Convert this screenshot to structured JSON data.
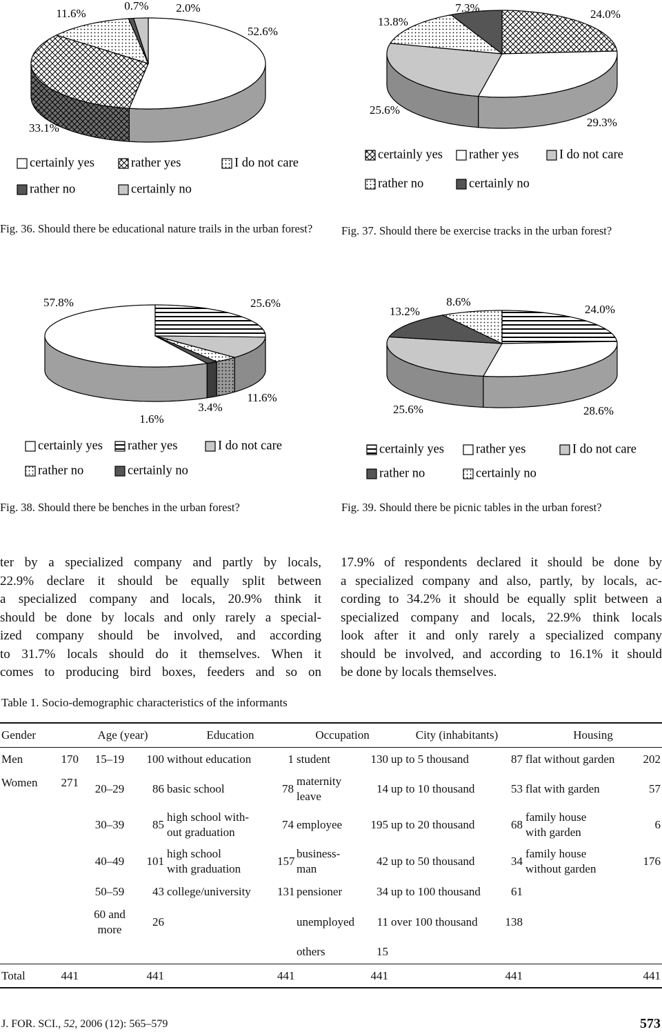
{
  "chart_data": [
    {
      "type": "pie",
      "title": "Fig. 36. Should there be educational nature trails in the urban forest?",
      "categories": [
        "certainly yes",
        "rather yes",
        "I do not care",
        "rather no",
        "certainly no"
      ],
      "values": [
        52.6,
        33.1,
        11.6,
        0.7,
        2.0
      ],
      "value_labels": [
        "52.6%",
        "33.1%",
        "11.6%",
        "0.7%",
        "2.0%"
      ],
      "patterns": [
        "white",
        "crosshatch",
        "dots",
        "dark",
        "gray"
      ]
    },
    {
      "type": "pie",
      "title": "Fig. 37. Should there be exercise tracks in the urban forest?",
      "categories": [
        "certainly yes",
        "rather yes",
        "I do not care",
        "rather no",
        "certainly no"
      ],
      "values": [
        24.0,
        29.3,
        25.6,
        13.8,
        7.3
      ],
      "value_labels": [
        "24.0%",
        "29.3%",
        "25.6%",
        "13.8%",
        "7.3%"
      ],
      "patterns": [
        "crosshatch",
        "white",
        "gray",
        "dots",
        "dark"
      ]
    },
    {
      "type": "pie",
      "title": "Fig. 38. Should there be benches in the urban forest?",
      "categories": [
        "certainly yes",
        "rather yes",
        "I do not care",
        "rather no",
        "certainly no"
      ],
      "values": [
        57.8,
        25.6,
        11.6,
        3.4,
        1.6
      ],
      "value_labels": [
        "57.8%",
        "25.6%",
        "11.6%",
        "3.4%",
        "1.6%"
      ],
      "patterns": [
        "white",
        "stripes",
        "gray",
        "dots",
        "dark"
      ]
    },
    {
      "type": "pie",
      "title": "Fig. 39. Should there be picnic tables in the urban forest?",
      "categories": [
        "certainly yes",
        "rather yes",
        "I do not care",
        "rather no",
        "certainly no"
      ],
      "values": [
        24.0,
        28.6,
        25.6,
        13.2,
        8.6
      ],
      "value_labels": [
        "24.0%",
        "28.6%",
        "25.6%",
        "13.2%",
        "8.6%"
      ],
      "patterns": [
        "stripes",
        "white",
        "gray",
        "dark",
        "dots"
      ]
    }
  ],
  "body": {
    "left": [
      "ter by a specialized company and partly by locals,",
      "22.9% declare it should be equally split between",
      "a specialized company and locals, 20.9% think it",
      "should be done by locals and only rarely a special-",
      "ized company should be involved, and according",
      "to 31.7% locals should do it themselves. When it",
      "comes to producing bird boxes, feeders and so on"
    ],
    "right": [
      "17.9% of respondents declared it should be done by",
      "a specialized company and also, partly, by locals, ac-",
      "cording to 34.2% it should be equally split between a",
      "specialized company and locals, 22.9% think locals",
      "look after it and only rarely a specialized company",
      "should be involved, and according to 16.1% it should",
      "be done by locals themselves."
    ]
  },
  "table": {
    "caption": "Table 1. Socio-demographic characteristics of the informants",
    "header": [
      "Gender",
      "Age (year)",
      "Education",
      "Occupation",
      "City (inhabitants)",
      "Housing"
    ],
    "rows": [
      [
        "Men",
        170,
        "15–19",
        100,
        "without education",
        1,
        "student",
        130,
        "up to 5 thousand",
        87,
        "flat without garden",
        202
      ],
      [
        "Women",
        271,
        "20–29",
        86,
        "basic school",
        78,
        "maternity\nleave",
        14,
        "up to 10 thousand",
        53,
        "flat with garden",
        57
      ],
      [
        null,
        null,
        "30–39",
        85,
        "high school with-\nout graduation",
        74,
        "employee",
        195,
        "up to 20 thousand",
        68,
        "family house\nwith garden",
        6
      ],
      [
        null,
        null,
        "40–49",
        101,
        "high school\nwith graduation",
        157,
        "business-\nman",
        42,
        "up to 50 thousand",
        34,
        "family house\nwithout garden",
        176
      ],
      [
        null,
        null,
        "50–59",
        43,
        "college/university",
        131,
        "pensioner",
        34,
        "up to 100 thousand",
        61,
        null,
        null
      ],
      [
        null,
        null,
        "60 and\nmore",
        26,
        null,
        null,
        "unemployed",
        11,
        "over 100 thousand",
        138,
        null,
        null
      ],
      [
        null,
        null,
        null,
        null,
        null,
        null,
        "others",
        15,
        null,
        null,
        null,
        null
      ]
    ],
    "total": [
      "Total",
      441,
      null,
      441,
      null,
      441,
      null,
      441,
      null,
      441,
      null,
      441
    ]
  },
  "footer": {
    "journal": "J. FOR. SCI.,",
    "volume": 52,
    "pages": ", 2006 (12): 565–579",
    "page": 573
  }
}
